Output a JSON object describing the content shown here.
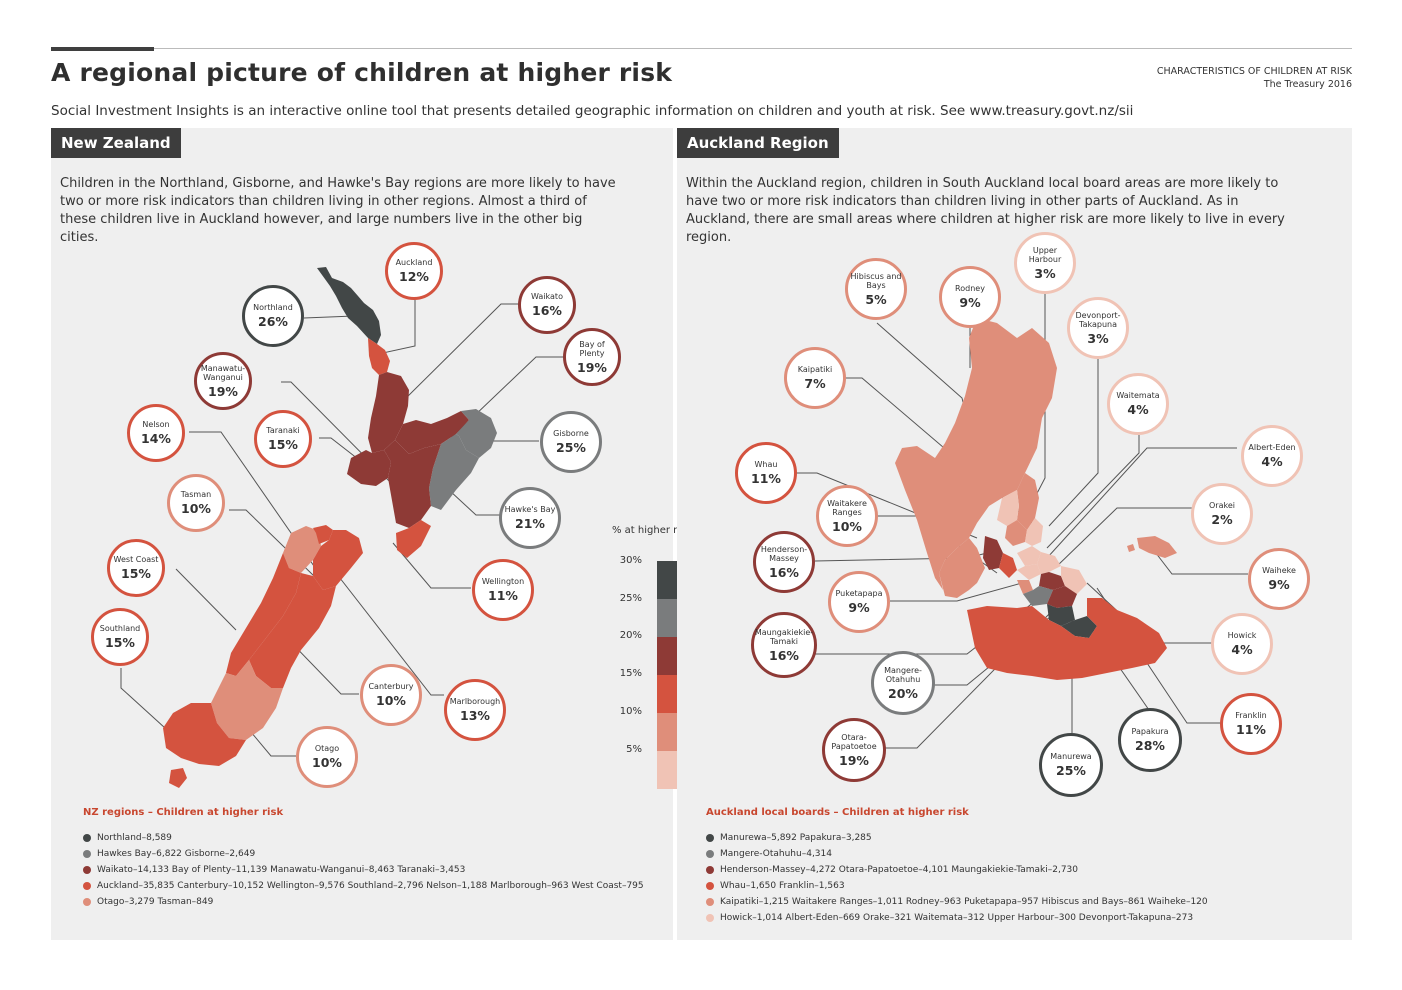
{
  "header": {
    "title": "A regional picture of children at higher risk",
    "subtitle": "Social Investment Insights is an interactive online tool that presents detailed geographic information on children and youth at risk.  See www.treasury.govt.nz/sii",
    "source_line1": "CHARACTERISTICS OF CHILDREN AT RISK",
    "source_line2": "The Treasury 2016"
  },
  "colors": {
    "band_25_30": "#424747",
    "band_20_25": "#7a7c7d",
    "band_15_20": "#8e3a36",
    "band_10_15": "#d4533f",
    "band_5_10": "#df8e7a",
    "band_0_5": "#f0c3b5",
    "panel_bg": "#efefef",
    "header_bg": "#3d3d3d",
    "legend_title": "#c8472f"
  },
  "nz": {
    "header": "New Zealand",
    "text": "Children in the Northland, Gisborne, and Hawke's Bay regions are more likely to have two or more risk indicators than children living in other regions. Almost a third of these children live in Auckland however, and large numbers live in the other big cities.",
    "regions": [
      {
        "name": "Northland",
        "pct": "26%",
        "value": 26
      },
      {
        "name": "Auckland",
        "pct": "12%",
        "value": 12
      },
      {
        "name": "Waikato",
        "pct": "16%",
        "value": 16
      },
      {
        "name": "Bay of Plenty",
        "pct": "19%",
        "value": 19
      },
      {
        "name": "Manawatu-Wanganui",
        "pct": "19%",
        "value": 19
      },
      {
        "name": "Taranaki",
        "pct": "15%",
        "value": 15
      },
      {
        "name": "Gisborne",
        "pct": "25%",
        "value": 25
      },
      {
        "name": "Nelson",
        "pct": "14%",
        "value": 14
      },
      {
        "name": "Tasman",
        "pct": "10%",
        "value": 10
      },
      {
        "name": "Hawke's Bay",
        "pct": "21%",
        "value": 21
      },
      {
        "name": "West Coast",
        "pct": "15%",
        "value": 15
      },
      {
        "name": "Wellington",
        "pct": "11%",
        "value": 11
      },
      {
        "name": "Southland",
        "pct": "15%",
        "value": 15
      },
      {
        "name": "Canterbury",
        "pct": "10%",
        "value": 10
      },
      {
        "name": "Marlborough",
        "pct": "13%",
        "value": 13
      },
      {
        "name": "Otago",
        "pct": "10%",
        "value": 10
      }
    ],
    "legend_title_a": "NZ regions",
    "legend_title_b": "Children at higher risk",
    "legend_rows": [
      {
        "text": "Northland–8,589"
      },
      {
        "text": "Hawkes Bay–6,822  Gisborne–2,649"
      },
      {
        "text": "Waikato–14,133  Bay of Plenty–11,139  Manawatu-Wanganui–8,463  Taranaki–3,453"
      },
      {
        "text": "Auckland–35,835  Canterbury–10,152  Wellington–9,576  Southland–2,796  Nelson–1,188  Marlborough–963  West Coast–795"
      },
      {
        "text": "Otago–3,279  Tasman–849"
      }
    ]
  },
  "auckland": {
    "header": "Auckland Region",
    "text": "Within the Auckland region, children in South Auckland local board areas are more likely to have two or more risk indicators than children living in other parts of Auckland. As in Auckland, there are small areas where children at higher risk are more likely to live in every region.",
    "boards": [
      {
        "name": "Upper Harbour",
        "pct": "3%",
        "value": 3
      },
      {
        "name": "Hibiscus and Bays",
        "pct": "5%",
        "value": 5
      },
      {
        "name": "Rodney",
        "pct": "9%",
        "value": 9
      },
      {
        "name": "Devonport-Takapuna",
        "pct": "3%",
        "value": 3
      },
      {
        "name": "Kaipatiki",
        "pct": "7%",
        "value": 7
      },
      {
        "name": "Waitemata",
        "pct": "4%",
        "value": 4
      },
      {
        "name": "Albert-Eden",
        "pct": "4%",
        "value": 4
      },
      {
        "name": "Whau",
        "pct": "11%",
        "value": 11
      },
      {
        "name": "Waitakere Ranges",
        "pct": "10%",
        "value": 10
      },
      {
        "name": "Orakei",
        "pct": "2%",
        "value": 2
      },
      {
        "name": "Henderson-Massey",
        "pct": "16%",
        "value": 16
      },
      {
        "name": "Waiheke",
        "pct": "9%",
        "value": 9
      },
      {
        "name": "Puketapapa",
        "pct": "9%",
        "value": 9
      },
      {
        "name": "Maungakiekie-Tamaki",
        "pct": "16%",
        "value": 16
      },
      {
        "name": "Howick",
        "pct": "4%",
        "value": 4
      },
      {
        "name": "Mangere-Otahuhu",
        "pct": "20%",
        "value": 20
      },
      {
        "name": "Franklin",
        "pct": "11%",
        "value": 11
      },
      {
        "name": "Otara-Papatoetoe",
        "pct": "19%",
        "value": 19
      },
      {
        "name": "Papakura",
        "pct": "28%",
        "value": 28
      },
      {
        "name": "Manurewa",
        "pct": "25%",
        "value": 25
      }
    ],
    "legend_title_a": "Auckland local boards",
    "legend_title_b": "Children at higher risk",
    "legend_rows": [
      {
        "text": "Manurewa–5,892  Papakura–3,285"
      },
      {
        "text": "Mangere-Otahuhu–4,314"
      },
      {
        "text": "Henderson-Massey–4,272  Otara-Papatoetoe–4,101  Maungakiekie-Tamaki–2,730"
      },
      {
        "text": "Whau–1,650  Franklin–1,563"
      },
      {
        "text": "Kaipatiki–1,215  Waitakere Ranges–1,011  Rodney–963  Puketapapa–957  Hibiscus and Bays–861  Waiheke–120"
      },
      {
        "text": "Howick–1,014  Albert-Eden–669  Orake–321  Waitemata–312  Upper Harbour–300  Devonport-Takapuna–273"
      }
    ]
  },
  "scale": {
    "title": "% at higher risk",
    "ticks": [
      "30%",
      "25%",
      "20%",
      "15%",
      "10%",
      "5%"
    ]
  }
}
